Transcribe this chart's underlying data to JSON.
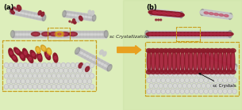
{
  "figsize": [
    3.05,
    1.39
  ],
  "dpi": 100,
  "bg_color_light": "#ddeebb",
  "bg_color_right": "#c8dfa0",
  "label_a": "(a)",
  "label_b": "(b)",
  "arrow_text": "sc Crystallization",
  "arrow_color": "#e8a020",
  "arrow_text_color": "#222222",
  "sc_crystals_label": "sc Crystals",
  "dashed_box_color": "#c8a020",
  "cnt_light": "#d8d8d8",
  "cnt_mid": "#b0b0b0",
  "cnt_dark": "#888888",
  "cnt_hex": "#aaaaaa",
  "plla_color": "#8b1a2a",
  "plla_mid": "#c03050",
  "pdla_color": "#c8c8c8",
  "pdla_mid": "#a0a0a0",
  "yellow_poly": "#d4a020",
  "yellow_poly2": "#f0c040"
}
